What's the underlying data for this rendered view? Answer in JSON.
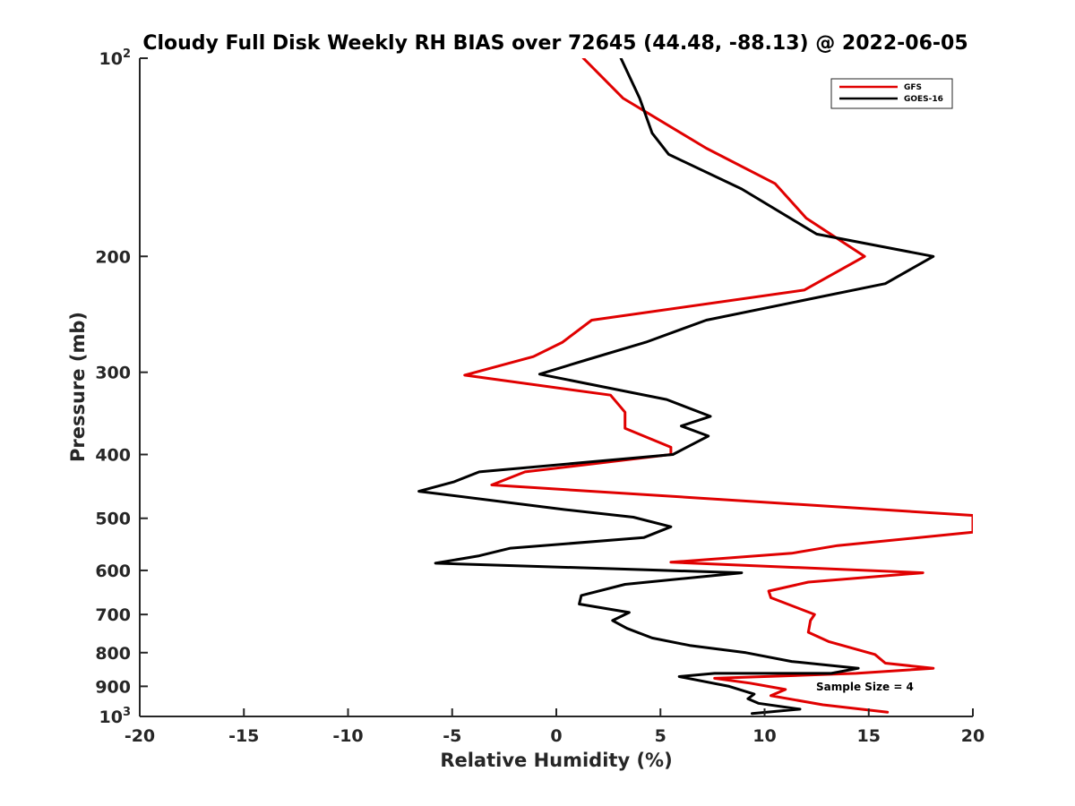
{
  "chart_data": {
    "type": "line",
    "title": "Cloudy Full Disk Weekly RH BIAS over 72645 (44.48, -88.13) @ 2022-06-05",
    "xlabel": "Relative Humidity (%)",
    "ylabel": "Pressure (mb)",
    "xlim": [
      -20,
      20
    ],
    "ylim": [
      100,
      1000
    ],
    "y_scale": "log",
    "y_direction": "reversed",
    "grid": false,
    "x_ticks": [
      -20,
      -15,
      -10,
      -5,
      0,
      5,
      10,
      15,
      20
    ],
    "x_tick_labels": [
      "-20",
      "-15",
      "-10",
      "-5",
      "0",
      "5",
      "10",
      "15",
      "20"
    ],
    "y_ticks": [
      {
        "value": 100,
        "base": "10",
        "exp": "2"
      },
      {
        "value": 200,
        "label": "200"
      },
      {
        "value": 300,
        "label": "300"
      },
      {
        "value": 400,
        "label": "400"
      },
      {
        "value": 500,
        "label": "500"
      },
      {
        "value": 600,
        "label": "600"
      },
      {
        "value": 700,
        "label": "700"
      },
      {
        "value": 800,
        "label": "800"
      },
      {
        "value": 900,
        "label": "900"
      },
      {
        "value": 1000,
        "base": "10",
        "exp": "3"
      }
    ],
    "legend_position": "top-right",
    "annotation": "Sample Size = 4",
    "series": [
      {
        "name": "GFS",
        "color": "#e00000",
        "points": [
          [
            1.3,
            100
          ],
          [
            3.2,
            115
          ],
          [
            7.2,
            137
          ],
          [
            10.5,
            155
          ],
          [
            12.0,
            175
          ],
          [
            14.8,
            200
          ],
          [
            11.9,
            225
          ],
          [
            1.7,
            250
          ],
          [
            0.3,
            270
          ],
          [
            -1.1,
            284
          ],
          [
            -4.4,
            303
          ],
          [
            2.6,
            325
          ],
          [
            3.3,
            345
          ],
          [
            3.3,
            365
          ],
          [
            5.5,
            390
          ],
          [
            5.5,
            400
          ],
          [
            -1.5,
            425
          ],
          [
            -3.1,
            445
          ],
          [
            20.0,
            495
          ],
          [
            20.0,
            525
          ],
          [
            13.5,
            550
          ],
          [
            11.3,
            565
          ],
          [
            5.5,
            583
          ],
          [
            17.6,
            605
          ],
          [
            12.1,
            625
          ],
          [
            10.2,
            645
          ],
          [
            10.3,
            660
          ],
          [
            12.4,
            700
          ],
          [
            12.2,
            715
          ],
          [
            12.1,
            745
          ],
          [
            13.1,
            770
          ],
          [
            15.3,
            805
          ],
          [
            15.8,
            830
          ],
          [
            18.1,
            845
          ],
          [
            14.4,
            860
          ],
          [
            7.6,
            875
          ],
          [
            9.3,
            890
          ],
          [
            11.0,
            910
          ],
          [
            10.3,
            930
          ],
          [
            12.8,
            960
          ],
          [
            15.9,
            985
          ]
        ]
      },
      {
        "name": "GOES-16",
        "color": "#000000",
        "points": [
          [
            3.1,
            100
          ],
          [
            4.0,
            115
          ],
          [
            4.6,
            130
          ],
          [
            5.4,
            140
          ],
          [
            8.9,
            158
          ],
          [
            12.5,
            185
          ],
          [
            18.1,
            200
          ],
          [
            15.8,
            220
          ],
          [
            7.2,
            250
          ],
          [
            4.3,
            270
          ],
          [
            1.5,
            287
          ],
          [
            -0.8,
            302
          ],
          [
            5.3,
            330
          ],
          [
            7.4,
            350
          ],
          [
            6.0,
            362
          ],
          [
            7.3,
            375
          ],
          [
            5.6,
            400
          ],
          [
            -3.7,
            425
          ],
          [
            -4.9,
            440
          ],
          [
            -6.6,
            455
          ],
          [
            0.4,
            485
          ],
          [
            3.7,
            498
          ],
          [
            5.5,
            515
          ],
          [
            4.2,
            535
          ],
          [
            -2.2,
            555
          ],
          [
            -3.7,
            570
          ],
          [
            -5.8,
            585
          ],
          [
            8.9,
            605
          ],
          [
            3.3,
            630
          ],
          [
            1.2,
            655
          ],
          [
            1.1,
            675
          ],
          [
            3.5,
            695
          ],
          [
            2.7,
            715
          ],
          [
            3.4,
            735
          ],
          [
            4.6,
            760
          ],
          [
            6.4,
            780
          ],
          [
            9.1,
            800
          ],
          [
            11.3,
            825
          ],
          [
            14.5,
            845
          ],
          [
            13.2,
            860
          ],
          [
            7.6,
            860
          ],
          [
            5.9,
            870
          ],
          [
            8.3,
            900
          ],
          [
            9.5,
            925
          ],
          [
            9.2,
            940
          ],
          [
            9.7,
            955
          ],
          [
            11.7,
            975
          ],
          [
            9.4,
            990
          ]
        ]
      }
    ]
  }
}
